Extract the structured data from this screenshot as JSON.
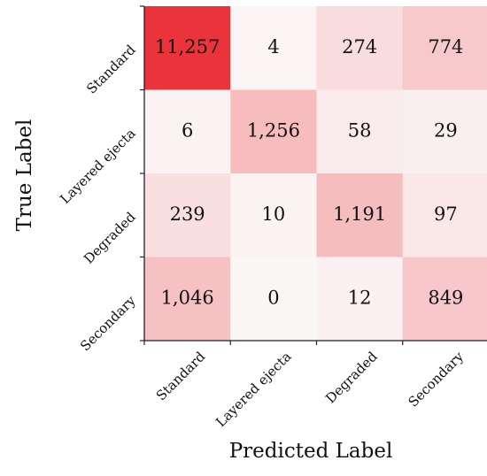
{
  "chart_data": {
    "type": "heatmap",
    "title": "",
    "xlabel": "Predicted Label",
    "ylabel": "True Label",
    "x_categories": [
      "Standard",
      "Layered ejecta",
      "Degraded",
      "Secondary"
    ],
    "y_categories": [
      "Standard",
      "Layered ejecta",
      "Degraded",
      "Secondary"
    ],
    "values": [
      [
        11257,
        4,
        274,
        774
      ],
      [
        6,
        1256,
        58,
        29
      ],
      [
        239,
        10,
        1191,
        97
      ],
      [
        1046,
        0,
        12,
        849
      ]
    ],
    "value_labels": [
      [
        "11,257",
        "4",
        "274",
        "774"
      ],
      [
        "6",
        "1,256",
        "58",
        "29"
      ],
      [
        "239",
        "10",
        "1,191",
        "97"
      ],
      [
        "1,046",
        "0",
        "12",
        "849"
      ]
    ],
    "colormap": {
      "low": "#fbf6f6",
      "high": "#ea333a"
    },
    "grid": false
  }
}
